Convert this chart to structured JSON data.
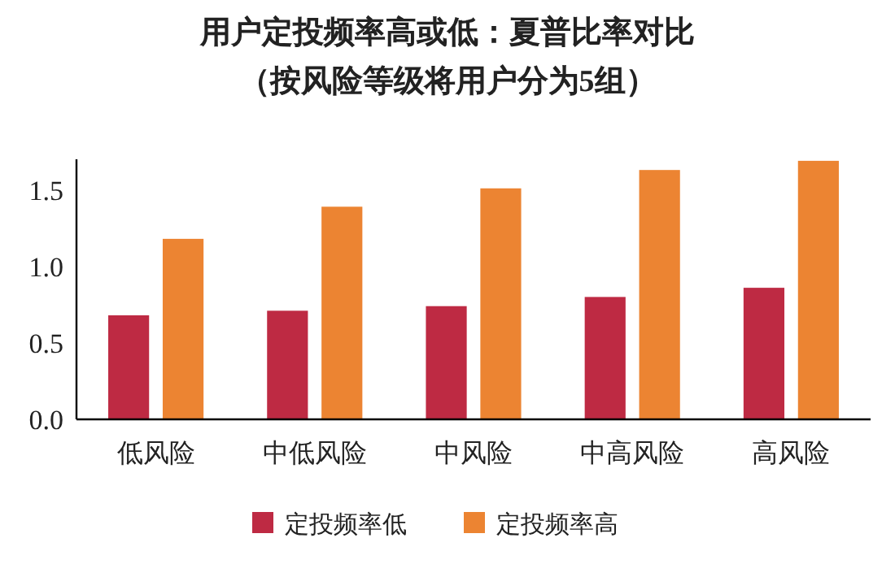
{
  "chart_data": {
    "type": "bar",
    "title": "用户定投频率高或低：夏普比率对比",
    "subtitle": "（按风险等级将用户分为5组）",
    "categories": [
      "低风险",
      "中低风险",
      "中风险",
      "中高风险",
      "高风险"
    ],
    "series": [
      {
        "name": "定投频率低",
        "color": "#be2a43",
        "values": [
          0.68,
          0.71,
          0.74,
          0.8,
          0.86
        ]
      },
      {
        "name": "定投频率高",
        "color": "#ec8432",
        "values": [
          1.18,
          1.39,
          1.51,
          1.63,
          1.69
        ]
      }
    ],
    "ylim": [
      0,
      1.7
    ],
    "yticks": [
      {
        "value": 0,
        "label": "0.0"
      },
      {
        "value": 0.5,
        "label": "0.5"
      },
      {
        "value": 1,
        "label": "1.0"
      },
      {
        "value": 1.5,
        "label": "1.5"
      }
    ],
    "grid": false,
    "legend": "bottom"
  }
}
